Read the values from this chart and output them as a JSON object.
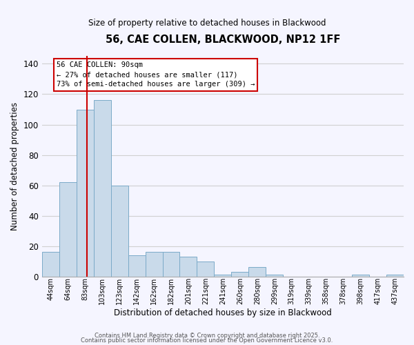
{
  "title": "56, CAE COLLEN, BLACKWOOD, NP12 1FF",
  "subtitle": "Size of property relative to detached houses in Blackwood",
  "xlabel": "Distribution of detached houses by size in Blackwood",
  "ylabel": "Number of detached properties",
  "bar_labels": [
    "44sqm",
    "64sqm",
    "83sqm",
    "103sqm",
    "123sqm",
    "142sqm",
    "162sqm",
    "182sqm",
    "201sqm",
    "221sqm",
    "241sqm",
    "260sqm",
    "280sqm",
    "299sqm",
    "319sqm",
    "339sqm",
    "358sqm",
    "378sqm",
    "398sqm",
    "417sqm",
    "437sqm"
  ],
  "bar_values": [
    16,
    62,
    110,
    116,
    60,
    14,
    16,
    16,
    13,
    10,
    1,
    3,
    6,
    1,
    0,
    0,
    0,
    0,
    1,
    0,
    1
  ],
  "bar_color": "#c9daea",
  "bar_edge_color": "#7aaac8",
  "grid_color": "#d0d0d0",
  "background_color": "#f5f5ff",
  "red_line_x": 2.1,
  "annotation_title": "56 CAE COLLEN: 90sqm",
  "annotation_line1": "← 27% of detached houses are smaller (117)",
  "annotation_line2": "73% of semi-detached houses are larger (309) →",
  "annotation_box_color": "#ffffff",
  "annotation_box_edge": "#cc0000",
  "red_line_color": "#cc0000",
  "ylim": [
    0,
    145
  ],
  "yticks": [
    0,
    20,
    40,
    60,
    80,
    100,
    120,
    140
  ],
  "footer1": "Contains HM Land Registry data © Crown copyright and database right 2025.",
  "footer2": "Contains public sector information licensed under the Open Government Licence v3.0."
}
